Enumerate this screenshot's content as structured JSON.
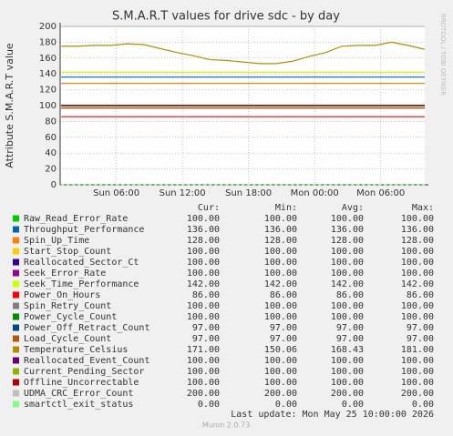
{
  "chart_data": {
    "type": "line",
    "title": "S.M.A.R.T values for drive sdc - by day",
    "y_label": "Attribute S.M.A.R.T value",
    "side_label": "RRDTOOL / TOBI OETIKER",
    "x": [
      1,
      2.5,
      4,
      5.5,
      7,
      8.5,
      10,
      11.5,
      13,
      14.5,
      16,
      17.5,
      19,
      20.5,
      22,
      23.5,
      25,
      26.5,
      28,
      29.5,
      31,
      32.5,
      34
    ],
    "xlim": [
      0.9,
      34
    ],
    "xticks": [
      {
        "value": 6,
        "label": "Sun 06:00"
      },
      {
        "value": 12,
        "label": "Sun 12:00"
      },
      {
        "value": 18,
        "label": "Sun 18:00"
      },
      {
        "value": 24,
        "label": "Mon 00:00"
      },
      {
        "value": 30,
        "label": "Mon 06:00"
      }
    ],
    "ylim": [
      0,
      200
    ],
    "yticks": [
      0,
      20,
      40,
      60,
      80,
      100,
      120,
      140,
      160,
      180,
      200
    ],
    "grid": true,
    "legend_headers": [
      "Cur:",
      "Min:",
      "Avg:",
      "Max:"
    ],
    "series": [
      {
        "name": "Raw_Read_Error_Rate",
        "color": "#00cc00",
        "values": [
          100,
          100,
          100,
          100,
          100,
          100,
          100,
          100,
          100,
          100,
          100,
          100,
          100,
          100,
          100,
          100,
          100,
          100,
          100,
          100,
          100,
          100,
          100
        ],
        "stats": [
          "100.00",
          "100.00",
          "100.00",
          "100.00"
        ]
      },
      {
        "name": "Throughput_Performance",
        "color": "#0066b3",
        "values": [
          136,
          136,
          136,
          136,
          136,
          136,
          136,
          136,
          136,
          136,
          136,
          136,
          136,
          136,
          136,
          136,
          136,
          136,
          136,
          136,
          136,
          136,
          136
        ],
        "stats": [
          "136.00",
          "136.00",
          "136.00",
          "136.00"
        ]
      },
      {
        "name": "Spin_Up_Time",
        "color": "#ff8000",
        "values": [
          128,
          128,
          128,
          128,
          128,
          128,
          128,
          128,
          128,
          128,
          128,
          128,
          128,
          128,
          128,
          128,
          128,
          128,
          128,
          128,
          128,
          128,
          128
        ],
        "stats": [
          "128.00",
          "128.00",
          "128.00",
          "128.00"
        ]
      },
      {
        "name": "Start_Stop_Count",
        "color": "#ffcc00",
        "values": [
          100,
          100,
          100,
          100,
          100,
          100,
          100,
          100,
          100,
          100,
          100,
          100,
          100,
          100,
          100,
          100,
          100,
          100,
          100,
          100,
          100,
          100,
          100
        ],
        "stats": [
          "100.00",
          "100.00",
          "100.00",
          "100.00"
        ]
      },
      {
        "name": "Reallocated_Sector_Ct",
        "color": "#330099",
        "values": [
          100,
          100,
          100,
          100,
          100,
          100,
          100,
          100,
          100,
          100,
          100,
          100,
          100,
          100,
          100,
          100,
          100,
          100,
          100,
          100,
          100,
          100,
          100
        ],
        "stats": [
          "100.00",
          "100.00",
          "100.00",
          "100.00"
        ]
      },
      {
        "name": "Seek_Error_Rate",
        "color": "#990099",
        "values": [
          100,
          100,
          100,
          100,
          100,
          100,
          100,
          100,
          100,
          100,
          100,
          100,
          100,
          100,
          100,
          100,
          100,
          100,
          100,
          100,
          100,
          100,
          100
        ],
        "stats": [
          "100.00",
          "100.00",
          "100.00",
          "100.00"
        ]
      },
      {
        "name": "Seek_Time_Performance",
        "color": "#ccff00",
        "values": [
          142,
          142,
          142,
          142,
          142,
          142,
          142,
          142,
          142,
          142,
          142,
          142,
          142,
          142,
          142,
          142,
          142,
          142,
          142,
          142,
          142,
          142,
          142
        ],
        "stats": [
          "142.00",
          "142.00",
          "142.00",
          "142.00"
        ]
      },
      {
        "name": "Power_On_Hours",
        "color": "#ff0000",
        "values": [
          86,
          86,
          86,
          86,
          86,
          86,
          86,
          86,
          86,
          86,
          86,
          86,
          86,
          86,
          86,
          86,
          86,
          86,
          86,
          86,
          86,
          86,
          86
        ],
        "stats": [
          "86.00",
          "86.00",
          "86.00",
          "86.00"
        ]
      },
      {
        "name": "Spin_Retry_Count",
        "color": "#808080",
        "values": [
          100,
          100,
          100,
          100,
          100,
          100,
          100,
          100,
          100,
          100,
          100,
          100,
          100,
          100,
          100,
          100,
          100,
          100,
          100,
          100,
          100,
          100,
          100
        ],
        "stats": [
          "100.00",
          "100.00",
          "100.00",
          "100.00"
        ]
      },
      {
        "name": "Power_Cycle_Count",
        "color": "#008f00",
        "values": [
          100,
          100,
          100,
          100,
          100,
          100,
          100,
          100,
          100,
          100,
          100,
          100,
          100,
          100,
          100,
          100,
          100,
          100,
          100,
          100,
          100,
          100,
          100
        ],
        "stats": [
          "100.00",
          "100.00",
          "100.00",
          "100.00"
        ]
      },
      {
        "name": "Power_Off_Retract_Count",
        "color": "#00487d",
        "values": [
          97,
          97,
          97,
          97,
          97,
          97,
          97,
          97,
          97,
          97,
          97,
          97,
          97,
          97,
          97,
          97,
          97,
          97,
          97,
          97,
          97,
          97,
          97
        ],
        "stats": [
          "97.00",
          "97.00",
          "97.00",
          "97.00"
        ]
      },
      {
        "name": "Load_Cycle_Count",
        "color": "#b35a00",
        "values": [
          97,
          97,
          97,
          97,
          97,
          97,
          97,
          97,
          97,
          97,
          97,
          97,
          97,
          97,
          97,
          97,
          97,
          97,
          97,
          97,
          97,
          97,
          97
        ],
        "stats": [
          "97.00",
          "97.00",
          "97.00",
          "97.00"
        ]
      },
      {
        "name": "Temperature_Celsius",
        "color": "#b38f00",
        "values": [
          175,
          175,
          176,
          176,
          178,
          177,
          172,
          167,
          163,
          158,
          157,
          155,
          153,
          153,
          156,
          162,
          167,
          175,
          176,
          176,
          180,
          176,
          171
        ],
        "stats": [
          "171.00",
          "150.06",
          "168.43",
          "181.00"
        ]
      },
      {
        "name": "Reallocated_Event_Count",
        "color": "#6b006b",
        "values": [
          100,
          100,
          100,
          100,
          100,
          100,
          100,
          100,
          100,
          100,
          100,
          100,
          100,
          100,
          100,
          100,
          100,
          100,
          100,
          100,
          100,
          100,
          100
        ],
        "stats": [
          "100.00",
          "100.00",
          "100.00",
          "100.00"
        ]
      },
      {
        "name": "Current_Pending_Sector",
        "color": "#8fb300",
        "values": [
          100,
          100,
          100,
          100,
          100,
          100,
          100,
          100,
          100,
          100,
          100,
          100,
          100,
          100,
          100,
          100,
          100,
          100,
          100,
          100,
          100,
          100,
          100
        ],
        "stats": [
          "100.00",
          "100.00",
          "100.00",
          "100.00"
        ]
      },
      {
        "name": "Offline_Uncorrectable",
        "color": "#b30000",
        "values": [
          100,
          100,
          100,
          100,
          100,
          100,
          100,
          100,
          100,
          100,
          100,
          100,
          100,
          100,
          100,
          100,
          100,
          100,
          100,
          100,
          100,
          100,
          100
        ],
        "stats": [
          "100.00",
          "100.00",
          "100.00",
          "100.00"
        ]
      },
      {
        "name": "UDMA_CRC_Error_Count",
        "color": "#bebebe",
        "values": [
          200,
          200,
          200,
          200,
          200,
          200,
          200,
          200,
          200,
          200,
          200,
          200,
          200,
          200,
          200,
          200,
          200,
          200,
          200,
          200,
          200,
          200,
          200
        ],
        "stats": [
          "200.00",
          "200.00",
          "200.00",
          "200.00"
        ]
      },
      {
        "name": "smartctl_exit_status",
        "color": "#80ff80",
        "values": [
          0,
          0,
          0,
          0,
          0,
          0,
          0,
          0,
          0,
          0,
          0,
          0,
          0,
          0,
          0,
          0,
          0,
          0,
          0,
          0,
          0,
          0,
          0
        ],
        "stats": [
          "0.00",
          "0.00",
          "0.00",
          "0.00"
        ]
      }
    ],
    "last_update": "Last update: Mon May 25 10:00:00 2026",
    "version": "Munin 2.0.73"
  }
}
